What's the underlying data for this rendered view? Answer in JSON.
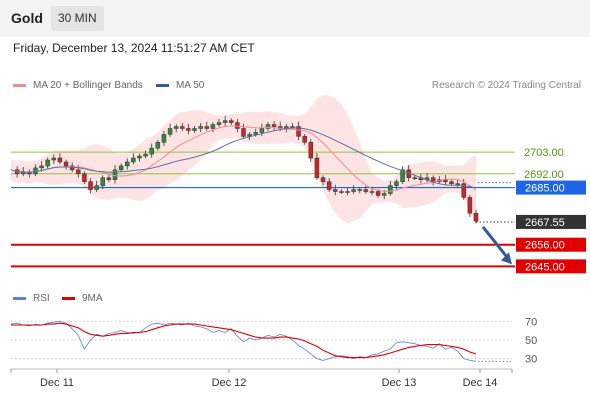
{
  "header": {
    "title": "Gold",
    "timeframe": "30 MIN"
  },
  "datetime": "Friday, December 13, 2024 11:51:27 AM CET",
  "legend": {
    "bb": {
      "label": "MA 20 + Bollinger Bands",
      "color": "#f08c8c"
    },
    "ma50": {
      "label": "MA 50",
      "color": "#2f5b9e"
    }
  },
  "credit": "Research © 2024 Trading Central",
  "rsi_legend": {
    "rsi": {
      "label": "RSI",
      "color": "#5b7fd6"
    },
    "ma9": {
      "label": "9MA",
      "color": "#e00000"
    }
  },
  "chart_data": [
    {
      "type": "candlestick",
      "ylim": [
        2633,
        2732
      ],
      "x_ticks": [
        "Dec 11",
        "Dec 12",
        "Dec 13",
        "Dec 14"
      ],
      "levels": [
        {
          "value": 2703.0,
          "label": "2703.00",
          "kind": "resistance",
          "color": "#8cc63f"
        },
        {
          "value": 2692.0,
          "label": "2692.00",
          "kind": "resistance",
          "color": "#8cc63f"
        },
        {
          "value": 2685.0,
          "label": "2685.00",
          "kind": "pivot",
          "color": "#1f66e5"
        },
        {
          "value": 2667.55,
          "label": "2667.55",
          "kind": "last",
          "color": "#333333"
        },
        {
          "value": 2656.0,
          "label": "2656.00",
          "kind": "support",
          "color": "#e00000"
        },
        {
          "value": 2645.0,
          "label": "2645.00",
          "kind": "support",
          "color": "#e00000"
        }
      ],
      "arrow": {
        "direction": "down",
        "from": 2665,
        "to": 2645,
        "color": "#2f5b9e"
      },
      "price_path": [
        2694,
        2692,
        2693,
        2692,
        2695,
        2696,
        2699,
        2700,
        2698,
        2696,
        2694,
        2692,
        2688,
        2684,
        2686,
        2690,
        2689,
        2694,
        2696,
        2698,
        2700,
        2701,
        2702,
        2705,
        2708,
        2712,
        2715,
        2716,
        2715,
        2714,
        2715,
        2716,
        2715,
        2717,
        2718,
        2719,
        2718,
        2715,
        2711,
        2712,
        2713,
        2715,
        2717,
        2716,
        2715,
        2716,
        2716,
        2711,
        2708,
        2700,
        2690,
        2688,
        2684,
        2683,
        2683,
        2683,
        2684,
        2684,
        2683,
        2683,
        2681,
        2682,
        2686,
        2688,
        2694,
        2690,
        2690,
        2689,
        2690,
        2688,
        2689,
        2688,
        2687,
        2687,
        2680,
        2672,
        2668
      ]
    },
    {
      "type": "line",
      "title": "RSI",
      "ylim": [
        22,
        80
      ],
      "y_ticks": [
        70,
        50,
        30
      ],
      "series": [
        {
          "name": "RSI",
          "color": "#5b7fd6",
          "values": [
            67,
            68,
            66,
            65,
            67,
            66,
            68,
            69,
            70,
            68,
            62,
            55,
            40,
            50,
            56,
            54,
            57,
            58,
            60,
            58,
            57,
            58,
            63,
            67,
            68,
            66,
            68,
            67,
            66,
            68,
            65,
            64,
            62,
            58,
            60,
            58,
            62,
            54,
            48,
            52,
            50,
            52,
            55,
            53,
            56,
            54,
            50,
            44,
            40,
            35,
            30,
            28,
            30,
            32,
            33,
            32,
            30,
            32,
            31,
            34,
            35,
            38,
            40,
            47,
            48,
            47,
            46,
            44,
            43,
            41,
            46,
            40,
            42,
            38,
            30,
            28,
            27
          ]
        },
        {
          "name": "9MA",
          "color": "#e00000",
          "values": [
            66,
            66,
            66,
            66,
            66,
            66,
            67,
            67,
            68,
            67,
            65,
            63,
            59,
            56,
            55,
            54,
            55,
            56,
            57,
            57,
            58,
            58,
            59,
            61,
            63,
            65,
            66,
            67,
            67,
            67,
            67,
            66,
            65,
            64,
            63,
            62,
            61,
            59,
            57,
            55,
            53,
            52,
            52,
            52,
            53,
            53,
            52,
            51,
            49,
            46,
            43,
            39,
            36,
            33,
            32,
            31,
            31,
            31,
            31,
            32,
            33,
            34,
            36,
            38,
            40,
            42,
            43,
            44,
            45,
            45,
            45,
            44,
            43,
            42,
            40,
            37,
            35
          ]
        }
      ]
    }
  ]
}
